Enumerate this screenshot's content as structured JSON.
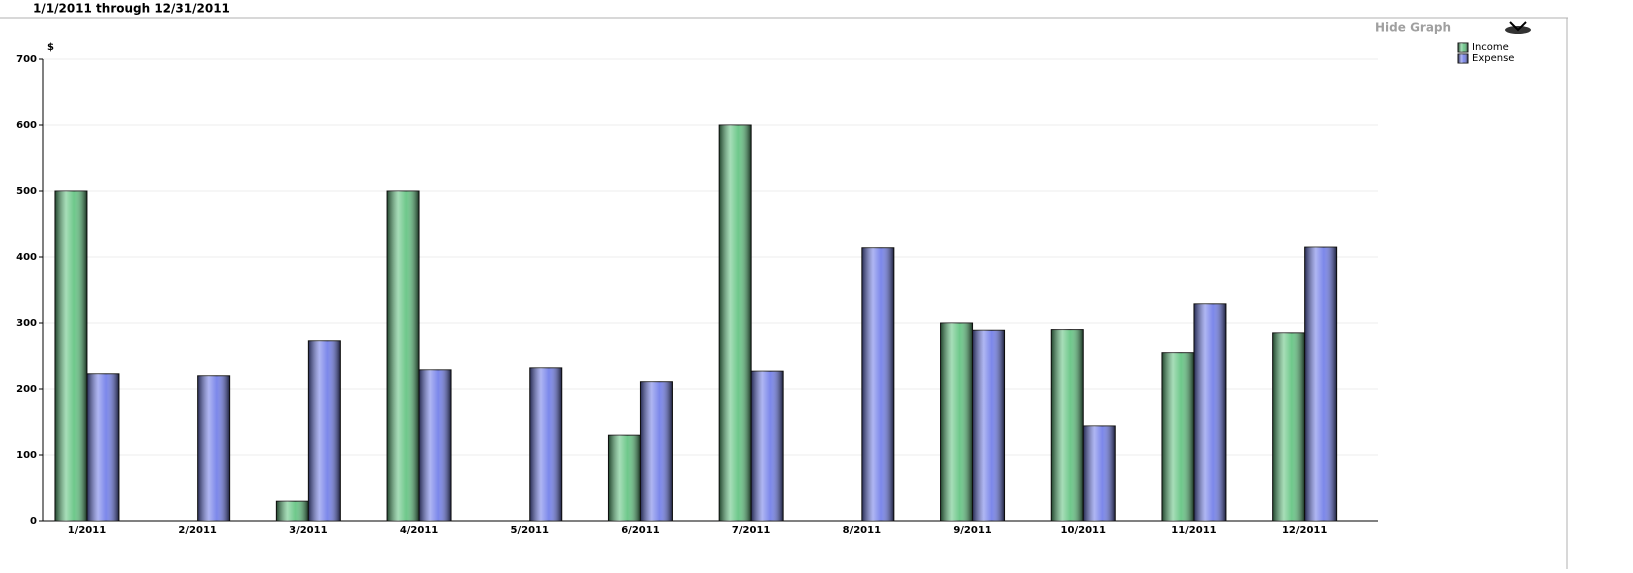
{
  "header": {
    "date_range": "1/1/2011 through 12/31/2011",
    "hide_graph": "Hide Graph"
  },
  "chart_data": {
    "type": "bar",
    "y_label": "$",
    "categories": [
      "1/2011",
      "2/2011",
      "3/2011",
      "4/2011",
      "5/2011",
      "6/2011",
      "7/2011",
      "8/2011",
      "9/2011",
      "10/2011",
      "11/2011",
      "12/2011"
    ],
    "series": [
      {
        "name": "Income",
        "color": "#5ec27e",
        "values": [
          500,
          0,
          30,
          500,
          0,
          130,
          600,
          0,
          300,
          290,
          255,
          285
        ]
      },
      {
        "name": "Expense",
        "color": "#6d7ae8",
        "values": [
          223,
          220,
          273,
          229,
          232,
          211,
          227,
          414,
          289,
          144,
          329,
          415
        ]
      }
    ],
    "ylim": [
      0,
      700
    ],
    "yticks": [
      0,
      100,
      200,
      300,
      400,
      500,
      600,
      700
    ],
    "grid": true,
    "legend": "upper right"
  }
}
